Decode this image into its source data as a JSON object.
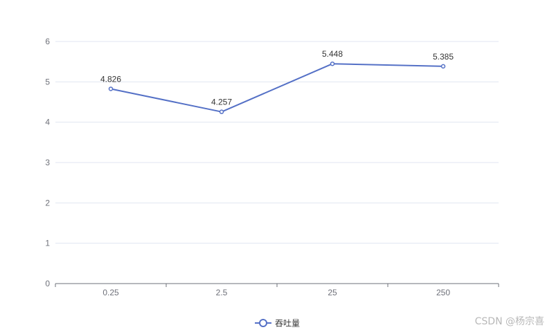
{
  "chart_data": {
    "type": "line",
    "categories": [
      "0.25",
      "2.5",
      "25",
      "250"
    ],
    "series": [
      {
        "name": "吞吐量",
        "values": [
          4.826,
          4.257,
          5.448,
          5.385
        ],
        "color": "#5470c6"
      }
    ],
    "data_labels": [
      "4.826",
      "4.257",
      "5.448",
      "5.385"
    ],
    "ylim": [
      0,
      6
    ],
    "y_ticks": [
      0,
      1,
      2,
      3,
      4,
      5,
      6
    ],
    "grid": true,
    "legend_position": "bottom-center"
  },
  "watermark": "CSDN @杨宗喜"
}
